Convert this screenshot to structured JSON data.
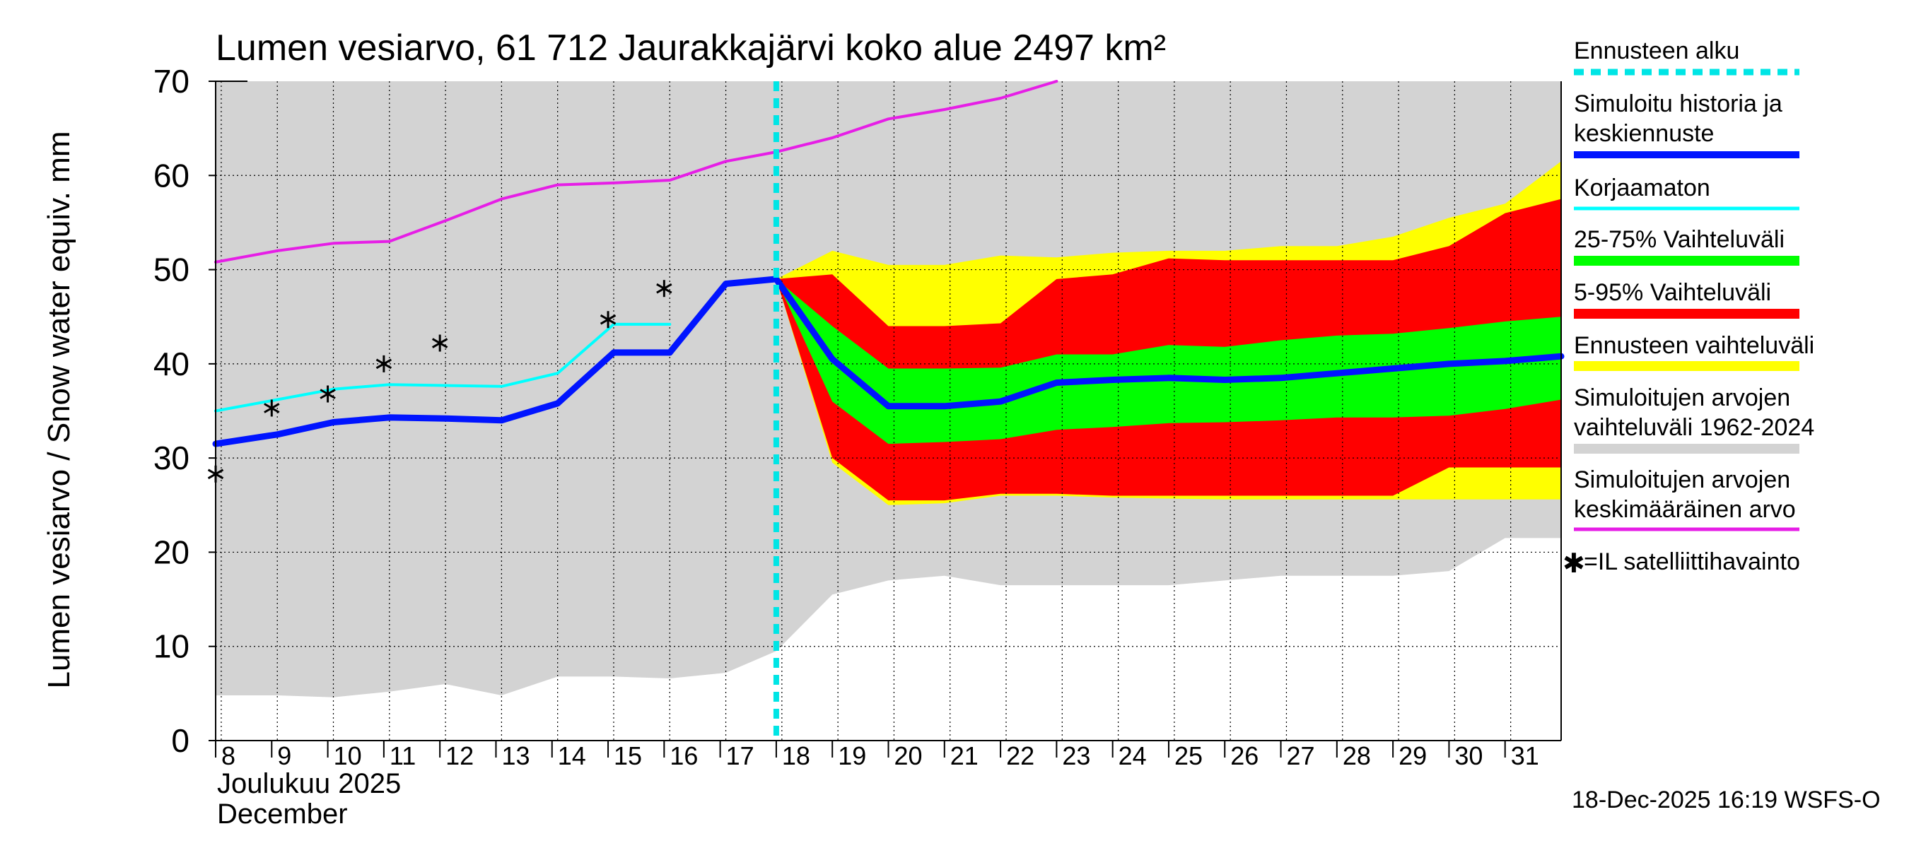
{
  "colors": {
    "background": "#ffffff",
    "range_all": "#d3d3d3",
    "forecast_range": "#ffff00",
    "p5_95": "#ff0000",
    "p25_75": "#00ff00",
    "mean_hist": "#e61ee6",
    "uncorrected": "#00ffff",
    "simulated": "#0014ff",
    "forecast_start": "#00e5e5",
    "grid": "#000000"
  },
  "chart_data": {
    "type": "area",
    "title": "Lumen vesiarvo, 61 712 Jaurakkajärvi koko alue 2497 km²",
    "ylabel": "Lumen vesiarvo / Snow water equiv.    mm",
    "ylim": [
      0,
      70
    ],
    "yticks": [
      0,
      10,
      20,
      30,
      40,
      50,
      60,
      70
    ],
    "xlim": [
      7.9,
      31.9
    ],
    "x_ticks": [
      8,
      9,
      10,
      11,
      12,
      13,
      14,
      15,
      16,
      17,
      18,
      19,
      20,
      21,
      22,
      23,
      24,
      25,
      26,
      27,
      28,
      29,
      30,
      31
    ],
    "x_tick_labels": [
      "8",
      "9",
      "10",
      "11",
      "12",
      "13",
      "14",
      "15",
      "16",
      "17",
      "18",
      "19",
      "20",
      "21",
      "22",
      "23",
      "24",
      "25",
      "26",
      "27",
      "28",
      "29",
      "30",
      "31"
    ],
    "month_label_fi": "Joulukuu  2025",
    "month_label_en": "December",
    "timestamp": "18-Dec-2025 16:19 WSFS-O",
    "forecast_start_x": 17.9,
    "series": {
      "range_1962_2024": {
        "x": [
          7.9,
          9,
          10,
          11,
          12,
          13,
          14,
          15,
          16,
          17,
          17.9,
          18.9,
          19.9,
          20.9,
          21.9,
          22.9,
          23.9,
          24.9,
          25.9,
          26.9,
          27.9,
          28.9,
          29.9,
          30.9,
          31.9
        ],
        "lower": [
          4.8,
          4.8,
          4.6,
          5.2,
          6.0,
          4.8,
          6.8,
          6.8,
          6.6,
          7.2,
          9.5,
          15.5,
          17.0,
          17.5,
          16.5,
          16.5,
          16.5,
          16.5,
          17.0,
          17.5,
          17.5,
          17.5,
          18.0,
          21.5,
          21.5
        ],
        "upper": [
          70,
          70,
          70,
          70,
          70,
          70,
          70,
          70,
          70,
          70,
          70,
          70,
          70,
          70,
          70,
          70,
          70,
          70,
          70,
          70,
          70,
          70,
          70,
          70,
          70
        ]
      },
      "forecast_range": {
        "x": [
          17.9,
          18.9,
          19.9,
          20.9,
          21.9,
          22.9,
          23.9,
          24.9,
          25.9,
          26.9,
          27.9,
          28.9,
          29.9,
          30.9,
          31.9
        ],
        "lower": [
          49.0,
          29.5,
          25.0,
          25.2,
          26.0,
          26.0,
          25.8,
          25.7,
          25.6,
          25.6,
          25.6,
          25.6,
          25.6,
          25.6,
          25.6
        ],
        "upper": [
          49.0,
          52.0,
          50.5,
          50.5,
          51.5,
          51.3,
          51.8,
          52.0,
          52.0,
          52.5,
          52.5,
          53.5,
          55.5,
          57.0,
          61.5
        ]
      },
      "p5_95": {
        "x": [
          17.9,
          18.9,
          19.9,
          20.9,
          21.9,
          22.9,
          23.9,
          24.9,
          25.9,
          26.9,
          27.9,
          28.9,
          29.9,
          30.9,
          31.9
        ],
        "lower": [
          49.0,
          30.0,
          25.5,
          25.5,
          26.2,
          26.2,
          26.0,
          26.0,
          26.0,
          26.0,
          26.0,
          26.0,
          29.0,
          29.0,
          29.0
        ],
        "upper": [
          49.0,
          49.5,
          44.0,
          44.0,
          44.3,
          49.0,
          49.5,
          51.2,
          51.0,
          51.0,
          51.0,
          51.0,
          52.5,
          56.0,
          57.5
        ]
      },
      "p25_75": {
        "x": [
          17.9,
          18.9,
          19.9,
          20.9,
          21.9,
          22.9,
          23.9,
          24.9,
          25.9,
          26.9,
          27.9,
          28.9,
          29.9,
          30.9,
          31.9
        ],
        "lower": [
          49.0,
          36.0,
          31.5,
          31.7,
          32.0,
          33.0,
          33.3,
          33.7,
          33.8,
          34.0,
          34.3,
          34.3,
          34.5,
          35.2,
          36.2
        ],
        "upper": [
          49.0,
          44.0,
          39.5,
          39.5,
          39.6,
          41.0,
          41.0,
          42.0,
          41.8,
          42.5,
          43.0,
          43.2,
          43.8,
          44.5,
          45.0
        ]
      },
      "mean_1962_2024": {
        "name": "Simuloitujen arvojen keskimääräinen arvo",
        "x": [
          7.9,
          9,
          10,
          11,
          12,
          13,
          14,
          15,
          16,
          17,
          17.9,
          18.9,
          19.9,
          20.9,
          21.9,
          22.9
        ],
        "values": [
          50.8,
          52.0,
          52.8,
          53.0,
          55.2,
          57.5,
          59.0,
          59.2,
          59.5,
          61.5,
          62.5,
          64.0,
          66.0,
          67.0,
          68.2,
          70.0
        ]
      },
      "uncorrected": {
        "name": "Korjaamaton",
        "x": [
          7.9,
          9,
          10,
          11,
          12,
          13,
          14,
          15,
          16
        ],
        "values": [
          35.0,
          36.2,
          37.3,
          37.8,
          37.7,
          37.6,
          39.0,
          44.2,
          44.2
        ]
      },
      "simulated": {
        "name": "Simuloitu historia ja keskiennuste",
        "x": [
          7.9,
          9,
          10,
          11,
          12,
          13,
          14,
          15,
          16,
          17,
          17.9,
          18.9,
          19.9,
          20.9,
          21.9,
          22.9,
          23.9,
          24.9,
          25.9,
          26.9,
          27.9,
          28.9,
          29.9,
          30.9,
          31.9
        ],
        "values": [
          31.5,
          32.5,
          33.8,
          34.3,
          34.2,
          34.0,
          35.8,
          41.2,
          41.2,
          48.5,
          49.0,
          40.5,
          35.5,
          35.5,
          36.0,
          38.0,
          38.3,
          38.5,
          38.3,
          38.5,
          39.0,
          39.5,
          40.0,
          40.3,
          40.8
        ]
      },
      "satellite": {
        "name": "=IL satelliittihavainto",
        "x": [
          7.9,
          8.9,
          9.9,
          10.9,
          11.9,
          14.9,
          15.9
        ],
        "values": [
          28.3,
          35.3,
          36.8,
          40.0,
          42.2,
          44.7,
          48.0
        ]
      }
    }
  },
  "legend": {
    "forecast_start": "Ennusteen alku",
    "simulated_line1": "Simuloitu historia ja",
    "simulated_line2": "keskiennuste",
    "uncorrected": "Korjaamaton",
    "p25_75": "25-75% Vaihteluväli",
    "p5_95": "5-95% Vaihteluväli",
    "forecast_range": "Ennusteen vaihteluväli",
    "range_line1": "Simuloitujen arvojen",
    "range_line2": "vaihteluväli 1962-2024",
    "mean_line1": "Simuloitujen arvojen",
    "mean_line2": "keskimääräinen arvo",
    "satellite": "=IL satelliittihavainto",
    "satellite_symbol": "✱"
  }
}
